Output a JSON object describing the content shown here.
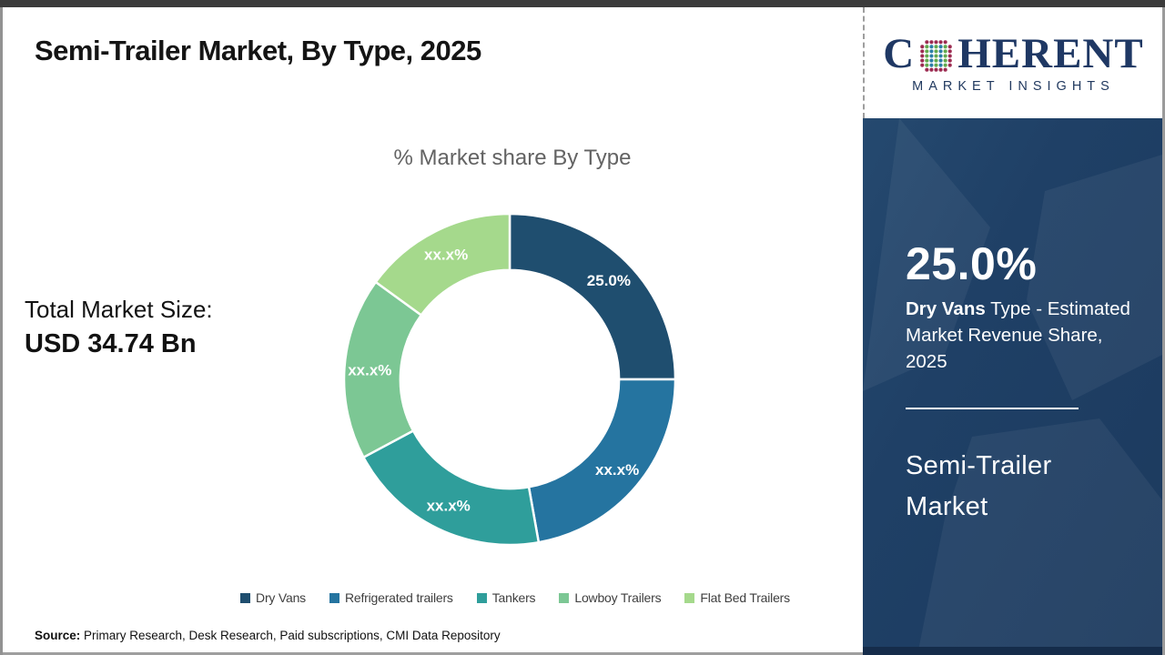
{
  "header": {
    "title": "Semi-Trailer Market, By Type, 2025"
  },
  "logo": {
    "prefix": "C",
    "suffix": "HERENT",
    "subtitle": "MARKET INSIGHTS",
    "color": "#1f3864",
    "globe_icon": "dotted-globe",
    "globe_dot_colors": {
      "outer": "#9c2b51",
      "teal": "#2c7fa8",
      "green": "#62aa4e"
    }
  },
  "main": {
    "chart_title": "% Market share By Type",
    "total_label": "Total Market Size:",
    "total_value": "USD 34.74 Bn",
    "source_label": "Source:",
    "source_text": " Primary Research, Desk Research, Paid subscriptions, CMI Data Repository"
  },
  "chart_data": {
    "type": "pie",
    "title": "% Market share By Type",
    "donut": true,
    "inner_radius_ratio": 0.66,
    "start_angle_deg": 0,
    "direction": "clockwise",
    "legend_position": "bottom",
    "slices": [
      {
        "label": "Dry Vans",
        "value": 25.0,
        "display": "25.0%",
        "color": "#1f4e6f"
      },
      {
        "label": "Refrigerated trailers",
        "value": 22.2,
        "display": "xx.x%",
        "color": "#2574a0"
      },
      {
        "label": "Tankers",
        "value": 20.0,
        "display": "xx.x%",
        "color": "#2f9e9b"
      },
      {
        "label": "Lowboy Trailers",
        "value": 17.8,
        "display": "xx.x%",
        "color": "#7cc794"
      },
      {
        "label": "Flat Bed Trailers",
        "value": 15.0,
        "display": "xx.x%",
        "color": "#a5d98c"
      }
    ]
  },
  "sidebar": {
    "stat_value": "25.0%",
    "stat_desc_bold": "Dry Vans",
    "stat_desc_rest": " Type - Estimated Market Revenue Share, 2025",
    "panel_title": "Semi-Trailer Market",
    "panel_color": "#1f4066"
  }
}
